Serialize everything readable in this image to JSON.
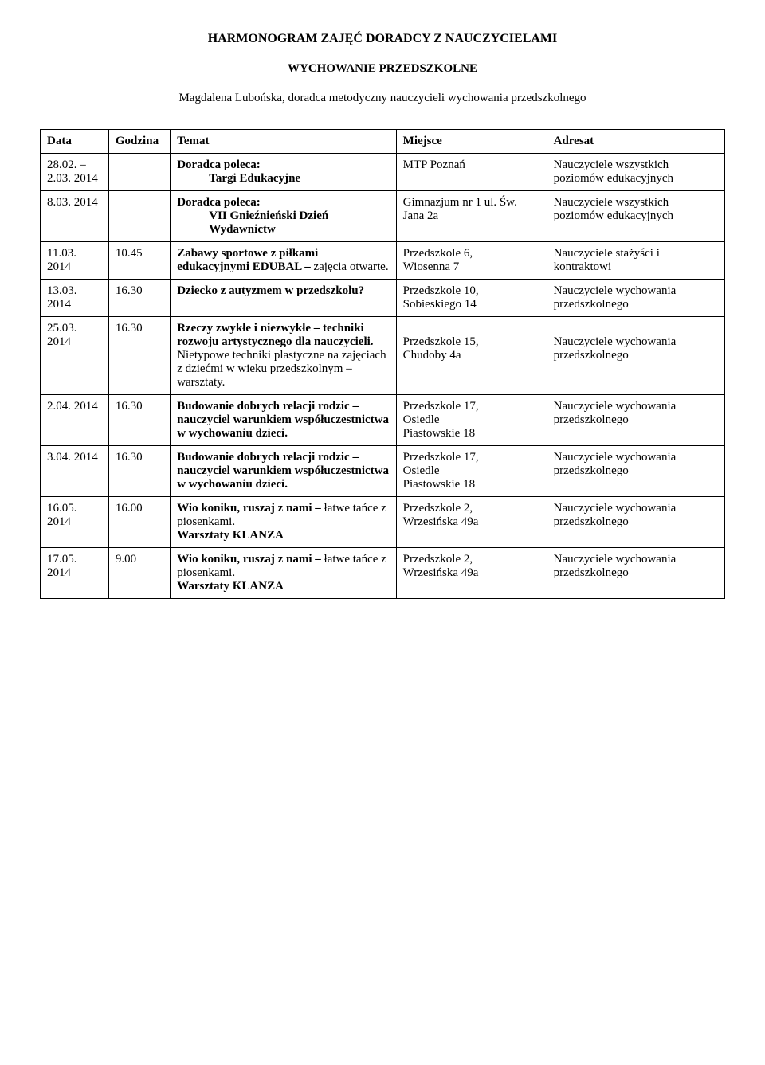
{
  "title": "HARMONOGRAM ZAJĘĆ DORADCY Z NAUCZYCIELAMI",
  "subtitle": "WYCHOWANIE PRZEDSZKOLNE",
  "author": "Magdalena Lubońska, doradca metodyczny nauczycieli wychowania przedszkolnego",
  "headers": {
    "data": "Data",
    "godzina": "Godzina",
    "temat": "Temat",
    "miejsce": "Miejsce",
    "adresat": "Adresat"
  },
  "rows": [
    {
      "data": "28.02. – 2.03. 2014",
      "godzina": "",
      "temat_bold1": "Doradca poleca:",
      "temat_line2": "Targi Edukacyjne",
      "miejsce": "MTP Poznań",
      "adresat": "Nauczyciele wszystkich poziomów edukacyjnych"
    },
    {
      "data": "8.03. 2014",
      "godzina": "",
      "temat_bold1": "Doradca poleca:",
      "temat_line2": "VII Gnieźnieński Dzień Wydawnictw",
      "miejsce": "Gimnazjum nr 1 ul. Św. Jana 2a",
      "adresat": "Nauczyciele wszystkich poziomów edukacyjnych"
    },
    {
      "data": "11.03. 2014",
      "godzina": "10.45",
      "temat_bold1": "Zabawy sportowe z piłkami edukacyjnymi EDUBAL –",
      "temat_plain": "zajęcia otwarte.",
      "miejsce_l1": "Przedszkole  6,",
      "miejsce_l2": " Wiosenna 7",
      "adresat": "Nauczyciele stażyści i kontraktowi"
    },
    {
      "data": "13.03. 2014",
      "godzina": "16.30",
      "temat_bold1": "Dziecko z autyzmem w przedszkolu?",
      "miejsce_l1": "Przedszkole 10,",
      "miejsce_l2": "Sobieskiego 14",
      "adresat": "Nauczyciele wychowania przedszkolnego"
    },
    {
      "data": "25.03. 2014",
      "godzina": "16.30",
      "temat_bold1": "Rzeczy zwykłe i niezwykłe – techniki rozwoju artystycznego dla nauczycieli. ",
      "temat_plain": "Nietypowe techniki plastyczne na zajęciach z dziećmi w wieku przedszkolnym – warsztaty.",
      "miejsce_l1": "Przedszkole 15,",
      "miejsce_l2": "  Chudoby 4a",
      "adresat": "Nauczyciele wychowania przedszkolnego"
    },
    {
      "data": "2.04. 2014",
      "godzina": "16.30",
      "temat_bold1": "Budowanie dobrych relacji rodzic – nauczyciel warunkiem współuczestnictwa w wychowaniu dzieci.",
      "miejsce_l1": "Przedszkole 17,",
      "miejsce_l2": "Osiedle",
      "miejsce_l3": "Piastowskie 18",
      "adresat": "Nauczyciele wychowania przedszkolnego"
    },
    {
      "data": "3.04. 2014",
      "godzina": "16.30",
      "temat_bold1": "Budowanie dobrych relacji rodzic – nauczyciel warunkiem współuczestnictwa w wychowaniu dzieci.",
      "miejsce_l1": "Przedszkole 17,",
      "miejsce_l2": "Osiedle",
      "miejsce_l3": "Piastowskie 18",
      "adresat": "Nauczyciele wychowania przedszkolnego"
    },
    {
      "data": "16.05. 2014",
      "godzina": "16.00",
      "temat_bold1": "Wio koniku, ruszaj z nami –",
      "temat_plain": "łatwe tańce z piosenkami.",
      "temat_bold2": "Warsztaty KLANZA",
      "miejsce_l1": "Przedszkole 2,",
      "miejsce_l2": "Wrzesińska 49a",
      "adresat": "Nauczyciele wychowania przedszkolnego"
    },
    {
      "data": "17.05. 2014",
      "godzina": "9.00",
      "temat_bold1": "Wio koniku, ruszaj z nami –",
      "temat_plain": "łatwe tańce z piosenkami.",
      "temat_bold2": "Warsztaty KLANZA",
      "miejsce_l1": " Przedszkole 2,",
      "miejsce_l2": "Wrzesińska 49a",
      "adresat": "Nauczyciele wychowania przedszkolnego"
    }
  ]
}
